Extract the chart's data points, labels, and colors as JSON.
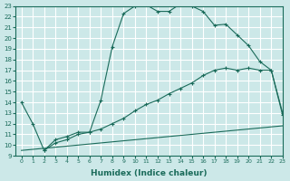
{
  "xlabel": "Humidex (Indice chaleur)",
  "ylabel": "",
  "xlim": [
    -0.5,
    23
  ],
  "ylim": [
    9,
    23
  ],
  "background_color": "#cce8e8",
  "grid_color": "#ffffff",
  "line_color": "#1a6b5a",
  "curve1_x": [
    0,
    1,
    2,
    3,
    4,
    5,
    6,
    7,
    8,
    9,
    10,
    11,
    12,
    13,
    14,
    15,
    16,
    17,
    18,
    19,
    20,
    21,
    22,
    23
  ],
  "curve1_y": [
    14.0,
    12.0,
    9.5,
    10.2,
    10.5,
    11.0,
    11.2,
    14.2,
    19.2,
    22.3,
    23.0,
    23.1,
    22.5,
    22.5,
    23.2,
    23.0,
    22.5,
    21.2,
    21.3,
    20.3,
    19.3,
    17.8,
    17.0,
    12.8
  ],
  "curve2_x": [
    2,
    3,
    4,
    5,
    6,
    7,
    8,
    9,
    10,
    11,
    12,
    13,
    14,
    15,
    16,
    17,
    18,
    19,
    20,
    21,
    22,
    23
  ],
  "curve2_y": [
    9.5,
    10.5,
    10.8,
    11.2,
    11.2,
    11.5,
    12.0,
    12.5,
    13.2,
    13.8,
    14.2,
    14.8,
    15.3,
    15.8,
    16.5,
    17.0,
    17.2,
    17.0,
    17.2,
    17.0,
    17.0,
    13.0
  ],
  "curve3_x": [
    0,
    1,
    2,
    3,
    4,
    5,
    6,
    7,
    8,
    9,
    10,
    11,
    12,
    13,
    14,
    15,
    16,
    17,
    18,
    19,
    20,
    21,
    22,
    23
  ],
  "curve3_y": [
    9.5,
    9.6,
    9.7,
    9.8,
    9.9,
    10.0,
    10.1,
    10.2,
    10.3,
    10.4,
    10.5,
    10.6,
    10.7,
    10.8,
    10.9,
    11.0,
    11.1,
    11.2,
    11.3,
    11.4,
    11.5,
    11.6,
    11.7,
    11.8
  ],
  "xticks": [
    0,
    1,
    2,
    3,
    4,
    5,
    6,
    7,
    8,
    9,
    10,
    11,
    12,
    13,
    14,
    15,
    16,
    17,
    18,
    19,
    20,
    21,
    22,
    23
  ],
  "yticks": [
    9,
    10,
    11,
    12,
    13,
    14,
    15,
    16,
    17,
    18,
    19,
    20,
    21,
    22,
    23
  ]
}
